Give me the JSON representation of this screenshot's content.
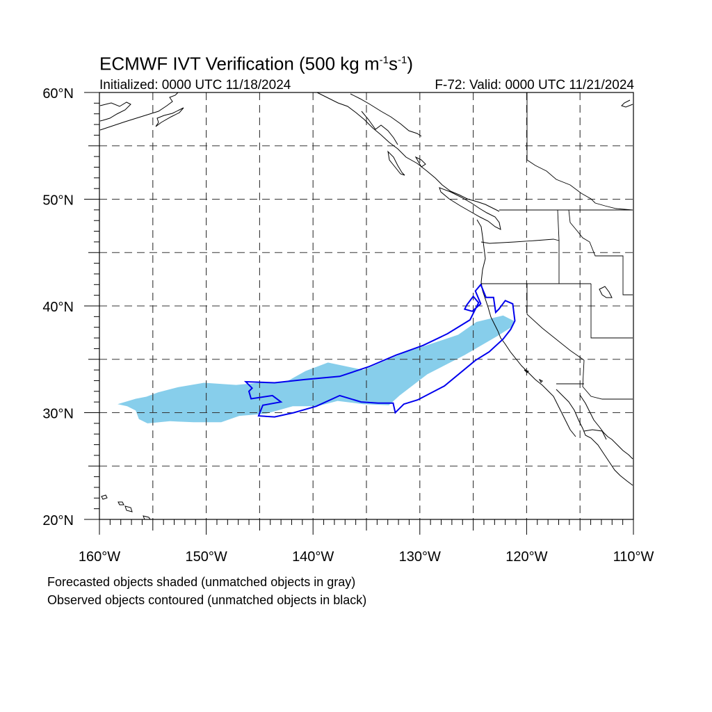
{
  "header": {
    "title_main": "ECMWF IVT Verification (500 kg m",
    "title_sup1": "-1",
    "title_mid": "s",
    "title_sup2": "-1",
    "title_end": ")",
    "initialized": "Initialized: 0000 UTC 11/18/2024",
    "valid": "F-72: Valid: 0000 UTC 11/21/2024"
  },
  "footer": {
    "line1": "Forecasted objects shaded (unmatched objects in gray)",
    "line2": "Observed objects contoured (unmatched objects in black)"
  },
  "map": {
    "lon_range": [
      -160,
      -110
    ],
    "lat_range": [
      20,
      60
    ],
    "lat_labels": [
      "60°N",
      "50°N",
      "40°N",
      "30°N",
      "20°N"
    ],
    "lon_labels": [
      "160°W",
      "150°W",
      "140°W",
      "130°W",
      "120°W",
      "110°W"
    ],
    "forecast_color": "#87ceeb",
    "observed_color": "#0000ee",
    "forecast_object_lonlat": [
      [
        -158.3,
        30.8
      ],
      [
        -157.4,
        30.6
      ],
      [
        -156.6,
        30.2
      ],
      [
        -156.3,
        29.4
      ],
      [
        -155.5,
        29.0
      ],
      [
        -153.4,
        29.2
      ],
      [
        -151.2,
        29.1
      ],
      [
        -148.6,
        29.1
      ],
      [
        -146.9,
        29.7
      ],
      [
        -144.4,
        29.9
      ],
      [
        -141.9,
        30.6
      ],
      [
        -139.6,
        30.6
      ],
      [
        -137.7,
        31.1
      ],
      [
        -135.3,
        30.8
      ],
      [
        -132.9,
        30.7
      ],
      [
        -131.9,
        31.6
      ],
      [
        -129.3,
        33.6
      ],
      [
        -125.8,
        35.4
      ],
      [
        -122.7,
        37.2
      ],
      [
        -121.3,
        38.1
      ],
      [
        -121.2,
        38.6
      ],
      [
        -122.2,
        39.1
      ],
      [
        -124.7,
        38.5
      ],
      [
        -126.4,
        37.3
      ],
      [
        -129.1,
        36.4
      ],
      [
        -131.5,
        35.6
      ],
      [
        -135.3,
        34.0
      ],
      [
        -138.6,
        34.7
      ],
      [
        -140.7,
        33.9
      ],
      [
        -142.5,
        32.9
      ],
      [
        -145.1,
        32.8
      ],
      [
        -147.2,
        32.6
      ],
      [
        -150.2,
        32.8
      ],
      [
        -152.6,
        32.4
      ],
      [
        -154.5,
        31.9
      ],
      [
        -155.6,
        31.5
      ],
      [
        -156.6,
        31.3
      ],
      [
        -158.3,
        30.8
      ]
    ],
    "observed_object_lonlat": [
      [
        -146.3,
        32.9
      ],
      [
        -143.6,
        32.8
      ],
      [
        -140.8,
        33.1
      ],
      [
        -137.5,
        33.4
      ],
      [
        -134.8,
        34.3
      ],
      [
        -132.2,
        35.4
      ],
      [
        -129.7,
        36.3
      ],
      [
        -127.4,
        37.4
      ],
      [
        -125.3,
        38.7
      ],
      [
        -124.5,
        40.3
      ],
      [
        -125.0,
        40.9
      ],
      [
        -125.6,
        40.1
      ],
      [
        -125.8,
        39.7
      ],
      [
        -125.1,
        39.5
      ],
      [
        -124.3,
        40.2
      ],
      [
        -124.8,
        41.4
      ],
      [
        -124.3,
        42.0
      ],
      [
        -123.8,
        40.8
      ],
      [
        -123.1,
        40.8
      ],
      [
        -122.9,
        39.4
      ],
      [
        -122.6,
        39.7
      ],
      [
        -122.0,
        40.5
      ],
      [
        -121.3,
        40.2
      ],
      [
        -121.1,
        38.6
      ],
      [
        -121.5,
        37.8
      ],
      [
        -122.2,
        36.9
      ],
      [
        -123.5,
        35.7
      ],
      [
        -124.8,
        34.9
      ],
      [
        -127.7,
        32.5
      ],
      [
        -130.2,
        31.2
      ],
      [
        -131.5,
        30.8
      ],
      [
        -132.1,
        30.2
      ],
      [
        -132.3,
        30.0
      ],
      [
        -132.5,
        30.9
      ],
      [
        -133.9,
        30.9
      ],
      [
        -135.5,
        31.0
      ],
      [
        -137.5,
        31.6
      ],
      [
        -139.7,
        30.6
      ],
      [
        -141.8,
        30.0
      ],
      [
        -143.6,
        29.6
      ],
      [
        -145.1,
        29.7
      ],
      [
        -144.7,
        30.7
      ],
      [
        -143.0,
        31.0
      ],
      [
        -143.8,
        31.6
      ],
      [
        -145.8,
        31.3
      ],
      [
        -146.0,
        32.0
      ],
      [
        -145.7,
        32.3
      ],
      [
        -146.3,
        32.9
      ]
    ]
  }
}
